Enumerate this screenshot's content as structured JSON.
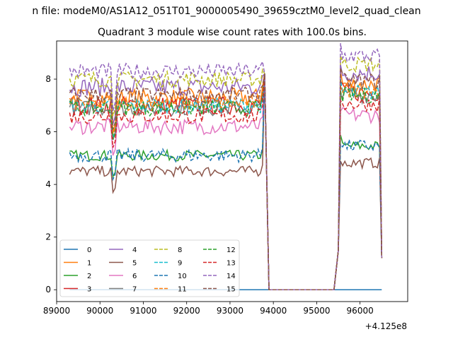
{
  "suptitle": "n file: modeM0/AS1A12_051T01_9000005490_39659cztM0_level2_quad_clean",
  "chart_data": {
    "type": "line",
    "title": "Quadrant 3 module wise count rates with 100.0s bins.",
    "xlabel": "",
    "ylabel": "",
    "x_offset_label": "+4.125e8",
    "offset": 412500000,
    "xlim": [
      89000,
      97100
    ],
    "ylim": [
      -0.45,
      9.45
    ],
    "xticks": [
      "89000",
      "90000",
      "91000",
      "92000",
      "93000",
      "94000",
      "95000",
      "96000"
    ],
    "yticks": [
      "0",
      "2",
      "4",
      "6",
      "8"
    ],
    "grid": false,
    "legend_position": "lower-left",
    "segments": [
      {
        "start": 89300,
        "end": 93800
      },
      {
        "start": 93900,
        "end": 95400
      },
      {
        "start": 95500,
        "end": 96500
      }
    ],
    "series": [
      {
        "name": "0",
        "color": "#1f77b4",
        "dash": "solid",
        "level": 0.0,
        "amp": 0.0,
        "dip": 0.0
      },
      {
        "name": "1",
        "color": "#ff7f0e",
        "dash": "solid",
        "level": 7.3,
        "amp": 0.35,
        "dip": 1.3
      },
      {
        "name": "2",
        "color": "#2ca02c",
        "dash": "solid",
        "level": 5.1,
        "amp": 0.2,
        "dip": 0.8
      },
      {
        "name": "3",
        "color": "#d62728",
        "dash": "solid",
        "level": 7.0,
        "amp": 0.35,
        "dip": 1.3
      },
      {
        "name": "4",
        "color": "#9467bd",
        "dash": "solid",
        "level": 7.7,
        "amp": 0.35,
        "dip": 1.4
      },
      {
        "name": "5",
        "color": "#8c564b",
        "dash": "solid",
        "level": 4.5,
        "amp": 0.2,
        "dip": 0.8
      },
      {
        "name": "6",
        "color": "#e377c2",
        "dash": "solid",
        "level": 6.2,
        "amp": 0.3,
        "dip": 1.1
      },
      {
        "name": "7",
        "color": "#7f7f7f",
        "dash": "solid",
        "level": 6.9,
        "amp": 0.3,
        "dip": 1.2
      },
      {
        "name": "8",
        "color": "#bcbd22",
        "dash": "dashed",
        "level": 8.0,
        "amp": 0.3,
        "dip": 1.4
      },
      {
        "name": "9",
        "color": "#17becf",
        "dash": "dashed",
        "level": 7.0,
        "amp": 0.3,
        "dip": 1.2
      },
      {
        "name": "10",
        "color": "#1f77b4",
        "dash": "dashed",
        "level": 5.1,
        "amp": 0.25,
        "dip": 0.9
      },
      {
        "name": "11",
        "color": "#ff7f0e",
        "dash": "dashed",
        "level": 7.1,
        "amp": 0.3,
        "dip": 1.2
      },
      {
        "name": "12",
        "color": "#2ca02c",
        "dash": "dashed",
        "level": 6.9,
        "amp": 0.3,
        "dip": 1.2
      },
      {
        "name": "13",
        "color": "#d62728",
        "dash": "dashed",
        "level": 6.6,
        "amp": 0.3,
        "dip": 1.2
      },
      {
        "name": "14",
        "color": "#9467bd",
        "dash": "dashed",
        "level": 8.3,
        "amp": 0.3,
        "dip": 1.5
      },
      {
        "name": "15",
        "color": "#8c564b",
        "dash": "dashed",
        "level": 7.4,
        "amp": 0.3,
        "dip": 1.3
      }
    ]
  }
}
